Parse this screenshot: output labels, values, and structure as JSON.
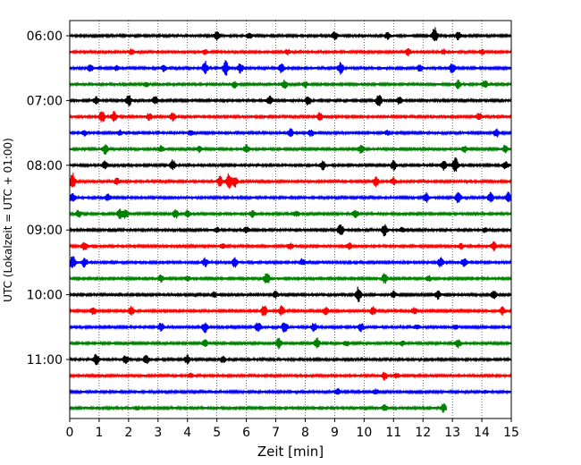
{
  "chart_data": {
    "type": "line",
    "title": "",
    "xlabel": "Zeit  [min]",
    "ylabel": "UTC (Lokalzeit = UTC + 01:00)",
    "xlim": [
      0,
      15
    ],
    "x_ticks": [
      0,
      1,
      2,
      3,
      4,
      5,
      6,
      7,
      8,
      9,
      10,
      11,
      12,
      13,
      14,
      15
    ],
    "y_tick_labels": [
      "06:00",
      "07:00",
      "08:00",
      "09:00",
      "10:00",
      "11:00"
    ],
    "trace_interval_minutes": 15,
    "first_trace_time": "06:00",
    "trace_colors": [
      "#000000",
      "#ff0000",
      "#0000ff",
      "#008000"
    ],
    "vertical_grid": "dotted",
    "traces": [
      {
        "time": "06:00",
        "events": [
          [
            5.0,
            0.5
          ],
          [
            6.1,
            0.4
          ],
          [
            9.0,
            0.5
          ],
          [
            10.8,
            0.4
          ],
          [
            12.4,
            1.0
          ],
          [
            13.2,
            0.5
          ]
        ]
      },
      {
        "time": "06:15",
        "events": [
          [
            2.1,
            0.3
          ],
          [
            4.6,
            0.3
          ],
          [
            7.4,
            0.3
          ],
          [
            11.5,
            0.4
          ],
          [
            12.7,
            0.3
          ],
          [
            14.0,
            0.3
          ]
        ]
      },
      {
        "time": "06:30",
        "events": [
          [
            0.7,
            0.4
          ],
          [
            1.6,
            0.3
          ],
          [
            3.2,
            0.4
          ],
          [
            4.6,
            0.8
          ],
          [
            5.3,
            0.9
          ],
          [
            5.8,
            0.6
          ],
          [
            7.2,
            0.6
          ],
          [
            9.2,
            0.7
          ],
          [
            11.9,
            0.4
          ],
          [
            13.0,
            0.6
          ]
        ]
      },
      {
        "time": "06:45",
        "events": [
          [
            2.6,
            0.3
          ],
          [
            5.6,
            0.4
          ],
          [
            7.3,
            0.5
          ],
          [
            8.0,
            0.4
          ],
          [
            13.2,
            0.5
          ],
          [
            14.1,
            0.5
          ]
        ]
      },
      {
        "time": "07:00",
        "events": [
          [
            0.9,
            0.4
          ],
          [
            2.0,
            0.7
          ],
          [
            2.9,
            0.5
          ],
          [
            6.8,
            0.6
          ],
          [
            8.1,
            0.6
          ],
          [
            10.5,
            0.8
          ],
          [
            11.2,
            0.5
          ]
        ]
      },
      {
        "time": "07:15",
        "events": [
          [
            1.1,
            0.7
          ],
          [
            1.5,
            0.6
          ],
          [
            2.7,
            0.4
          ],
          [
            3.5,
            0.5
          ],
          [
            8.5,
            0.5
          ],
          [
            13.9,
            0.5
          ]
        ]
      },
      {
        "time": "07:30",
        "events": [
          [
            0.5,
            0.3
          ],
          [
            1.7,
            0.3
          ],
          [
            4.1,
            0.3
          ],
          [
            7.5,
            0.5
          ],
          [
            8.2,
            0.4
          ],
          [
            10.8,
            0.3
          ],
          [
            14.5,
            0.5
          ]
        ]
      },
      {
        "time": "07:45",
        "events": [
          [
            1.2,
            0.6
          ],
          [
            3.1,
            0.4
          ],
          [
            4.4,
            0.4
          ],
          [
            6.0,
            0.5
          ],
          [
            9.9,
            0.6
          ],
          [
            13.4,
            0.4
          ],
          [
            14.8,
            0.5
          ]
        ]
      },
      {
        "time": "08:00",
        "events": [
          [
            1.2,
            0.5
          ],
          [
            3.5,
            0.6
          ],
          [
            8.6,
            0.5
          ],
          [
            11.0,
            0.6
          ],
          [
            12.7,
            0.6
          ],
          [
            13.1,
            0.9
          ],
          [
            14.8,
            0.5
          ]
        ]
      },
      {
        "time": "08:15",
        "events": [
          [
            0.1,
            1.0
          ],
          [
            1.6,
            0.4
          ],
          [
            5.1,
            0.6
          ],
          [
            5.4,
            0.9
          ],
          [
            5.6,
            0.7
          ],
          [
            10.4,
            0.6
          ],
          [
            11.0,
            0.4
          ]
        ]
      },
      {
        "time": "08:30",
        "events": [
          [
            0.1,
            0.6
          ],
          [
            1.3,
            0.4
          ],
          [
            12.1,
            0.6
          ],
          [
            13.2,
            0.7
          ],
          [
            14.3,
            0.6
          ],
          [
            14.9,
            0.7
          ]
        ]
      },
      {
        "time": "08:45",
        "events": [
          [
            0.3,
            0.4
          ],
          [
            1.7,
            0.6
          ],
          [
            1.9,
            0.6
          ],
          [
            3.6,
            0.5
          ],
          [
            4.0,
            0.4
          ],
          [
            6.2,
            0.4
          ],
          [
            7.7,
            0.3
          ],
          [
            9.7,
            0.5
          ]
        ]
      },
      {
        "time": "09:00",
        "events": [
          [
            5.0,
            0.3
          ],
          [
            6.0,
            0.4
          ],
          [
            9.2,
            0.8
          ],
          [
            10.7,
            0.8
          ],
          [
            11.3,
            0.3
          ],
          [
            14.1,
            0.3
          ]
        ]
      },
      {
        "time": "09:15",
        "events": [
          [
            0.5,
            0.5
          ],
          [
            5.2,
            0.3
          ],
          [
            7.5,
            0.4
          ],
          [
            9.5,
            0.4
          ],
          [
            13.3,
            0.3
          ],
          [
            14.4,
            0.5
          ]
        ]
      },
      {
        "time": "09:30",
        "events": [
          [
            0.1,
            0.8
          ],
          [
            0.5,
            0.6
          ],
          [
            4.6,
            0.5
          ],
          [
            5.6,
            0.6
          ],
          [
            7.9,
            0.4
          ],
          [
            12.6,
            0.6
          ],
          [
            13.4,
            0.5
          ]
        ]
      },
      {
        "time": "09:45",
        "events": [
          [
            3.1,
            0.4
          ],
          [
            4.0,
            0.3
          ],
          [
            6.7,
            0.8
          ],
          [
            10.7,
            0.6
          ],
          [
            12.2,
            0.3
          ]
        ]
      },
      {
        "time": "10:00",
        "events": [
          [
            4.9,
            0.3
          ],
          [
            7.0,
            0.4
          ],
          [
            9.8,
            0.9
          ],
          [
            11.0,
            0.4
          ],
          [
            12.5,
            0.5
          ],
          [
            14.4,
            0.5
          ]
        ]
      },
      {
        "time": "10:15",
        "events": [
          [
            0.8,
            0.5
          ],
          [
            2.1,
            0.5
          ],
          [
            6.6,
            0.7
          ],
          [
            7.2,
            0.6
          ],
          [
            8.7,
            0.5
          ],
          [
            10.3,
            0.5
          ],
          [
            11.7,
            0.4
          ],
          [
            14.7,
            0.5
          ]
        ]
      },
      {
        "time": "10:30",
        "events": [
          [
            3.1,
            0.5
          ],
          [
            4.6,
            0.6
          ],
          [
            6.4,
            0.6
          ],
          [
            7.3,
            0.7
          ],
          [
            8.3,
            0.5
          ],
          [
            9.9,
            0.5
          ],
          [
            11.8,
            0.3
          ],
          [
            13.1,
            0.3
          ]
        ]
      },
      {
        "time": "10:45",
        "events": [
          [
            4.6,
            0.4
          ],
          [
            7.1,
            0.6
          ],
          [
            8.4,
            0.6
          ],
          [
            9.4,
            0.3
          ],
          [
            11.3,
            0.3
          ],
          [
            13.2,
            0.5
          ]
        ]
      },
      {
        "time": "11:00",
        "events": [
          [
            0.9,
            0.7
          ],
          [
            1.9,
            0.5
          ],
          [
            2.6,
            0.5
          ],
          [
            4.0,
            0.5
          ],
          [
            5.2,
            0.4
          ]
        ]
      },
      {
        "time": "11:15",
        "events": [
          [
            4.1,
            0.3
          ],
          [
            10.7,
            0.5
          ],
          [
            11.1,
            0.3
          ]
        ]
      },
      {
        "time": "11:30",
        "events": [
          [
            9.1,
            0.4
          ],
          [
            10.4,
            0.3
          ],
          [
            14.1,
            0.2
          ]
        ]
      },
      {
        "time": "11:45",
        "events": [
          [
            2.3,
            0.2
          ],
          [
            10.7,
            0.4
          ],
          [
            12.7,
            0.5
          ]
        ],
        "end_minute": 12.8
      }
    ]
  }
}
